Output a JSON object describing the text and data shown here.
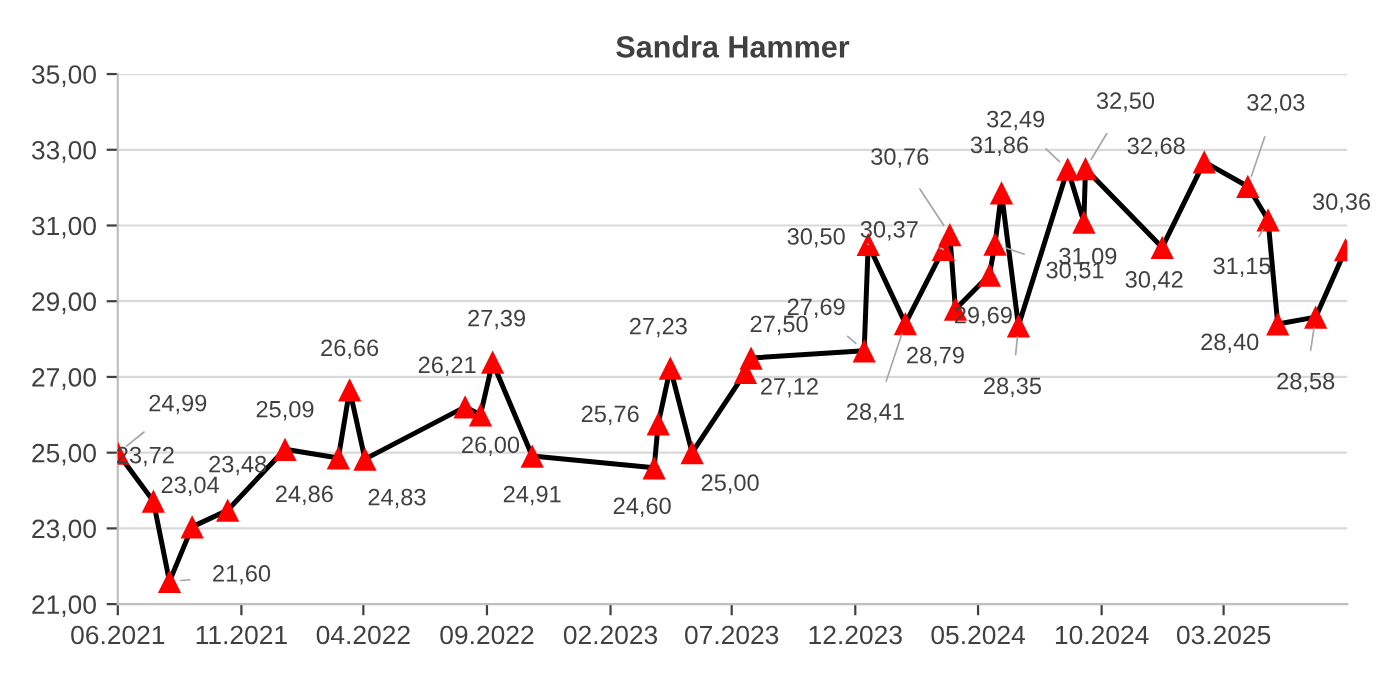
{
  "chart_data": {
    "type": "line",
    "title": "Sandra Hammer",
    "x": [
      "2021-06-01",
      "2021-07-15",
      "2021-08-04",
      "2021-09-01",
      "2021-10-15",
      "2021-12-25",
      "2022-03-01",
      "2022-03-15",
      "2022-04-03",
      "2022-08-05",
      "2022-08-24",
      "2022-09-08",
      "2022-10-27",
      "2023-03-27",
      "2023-04-01",
      "2023-04-16",
      "2023-05-13",
      "2023-07-18",
      "2023-07-25",
      "2023-12-12",
      "2023-12-17",
      "2024-02-01",
      "2024-03-19",
      "2024-03-27",
      "2024-04-03",
      "2024-05-15",
      "2024-05-22",
      "2024-05-30",
      "2024-06-20",
      "2024-08-20",
      "2024-09-09",
      "2024-09-11",
      "2024-12-15",
      "2025-02-05",
      "2025-03-31",
      "2025-04-25",
      "2025-05-07",
      "2025-06-23",
      "2025-07-30"
    ],
    "series": [
      {
        "color": "#000000",
        "colors": [
          "#ff0000",
          "#ff0000",
          "#ff0000",
          "#ff0000",
          "#ff0000",
          "#ff0000",
          "#ff0000",
          "#ff0000",
          "#ff0000",
          "#ff0000",
          "#ff0000",
          "#ff0000",
          "#ff0000",
          "#ff0000",
          "#ff0000",
          "#ff0000",
          "#ff0000",
          "#ff0000",
          "#ff0000",
          "#ff0000",
          "#ff0000",
          "#ff0000",
          "#ff0000",
          "#ff0000",
          "#ff0000",
          "#ff0000",
          "#ff0000",
          "#ff0000",
          "#ff0000",
          "#ff0000",
          "#ff0000",
          "#ff0000",
          "#ff0000",
          "#ff0000",
          "#ff0000",
          "#ff0000",
          "#ff0000",
          "#ff0000",
          "#ff0000"
        ],
        "values": [
          24.99,
          23.72,
          21.6,
          23.04,
          23.48,
          25.09,
          24.86,
          26.66,
          24.83,
          26.21,
          26.0,
          27.39,
          24.91,
          24.6,
          25.76,
          27.23,
          25.0,
          27.12,
          27.5,
          27.69,
          30.5,
          28.41,
          30.37,
          30.76,
          28.79,
          29.69,
          30.51,
          31.86,
          28.35,
          32.49,
          31.09,
          32.5,
          30.42,
          32.68,
          32.03,
          31.15,
          28.4,
          28.58,
          30.36
        ],
        "value_labels": [
          "24,99",
          "23,72",
          "21,60",
          "23,04",
          "23,48",
          "25,09",
          "24,86",
          "26,66",
          "24,83",
          "26,21",
          "26,00",
          "27,39",
          "24,91",
          "24,60",
          "25,76",
          "27,23",
          "25,00",
          "27,12",
          "27,50",
          "27,69",
          "30,50",
          "28,41",
          "30,37",
          "30,76",
          "28,79",
          "29,69",
          "30,51",
          "31,86",
          "28,35",
          "32,49",
          "31,09",
          "32,50",
          "30,42",
          "32,68",
          "32,03",
          "31,15",
          "28,40",
          "28,58",
          "30,36"
        ]
      }
    ],
    "marker": "triangle",
    "line_style": "solid",
    "xlim": [
      "2021-06-01",
      "2025-08-01"
    ],
    "xticks": [
      {
        "value": "2021-06-01",
        "label": "06.2021"
      },
      {
        "value": "2021-11-01",
        "label": "11.2021"
      },
      {
        "value": "2022-04-01",
        "label": "04.2022"
      },
      {
        "value": "2022-09-01",
        "label": "09.2022"
      },
      {
        "value": "2023-02-01",
        "label": "02.2023"
      },
      {
        "value": "2023-07-01",
        "label": "07.2023"
      },
      {
        "value": "2023-12-01",
        "label": "12.2023"
      },
      {
        "value": "2024-05-01",
        "label": "05.2024"
      },
      {
        "value": "2024-10-01",
        "label": "10.2024"
      },
      {
        "value": "2025-03-01",
        "label": "03.2025"
      }
    ],
    "ylim": [
      21,
      35
    ],
    "yticks": [
      {
        "value": 21,
        "label": "21,00"
      },
      {
        "value": 23,
        "label": "23,00"
      },
      {
        "value": 25,
        "label": "25,00"
      },
      {
        "value": 27,
        "label": "27,00"
      },
      {
        "value": 29,
        "label": "29,00"
      },
      {
        "value": 31,
        "label": "31,00"
      },
      {
        "value": 33,
        "label": "33,00"
      },
      {
        "value": 35,
        "label": "35,00"
      }
    ],
    "grid": "y"
  }
}
